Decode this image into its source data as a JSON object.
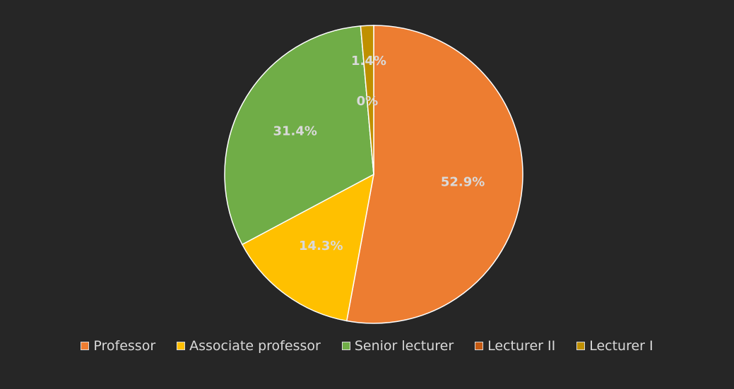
{
  "chart_data": {
    "type": "pie",
    "title": "",
    "legend_position": "bottom",
    "slices": [
      {
        "label": "Professor",
        "value": 52.9,
        "display": "52.9%",
        "color": "#ED7D31"
      },
      {
        "label": "Associate professor",
        "value": 14.3,
        "display": "14.3%",
        "color": "#FFC000"
      },
      {
        "label": "Senior lecturer",
        "value": 31.4,
        "display": "31.4%",
        "color": "#70AD47"
      },
      {
        "label": "Lecturer II",
        "value": 0,
        "display": "0%",
        "color": "#C55A11"
      },
      {
        "label": "Lecturer I",
        "value": 1.4,
        "display": "1.4%",
        "color": "#BF9000"
      }
    ]
  }
}
